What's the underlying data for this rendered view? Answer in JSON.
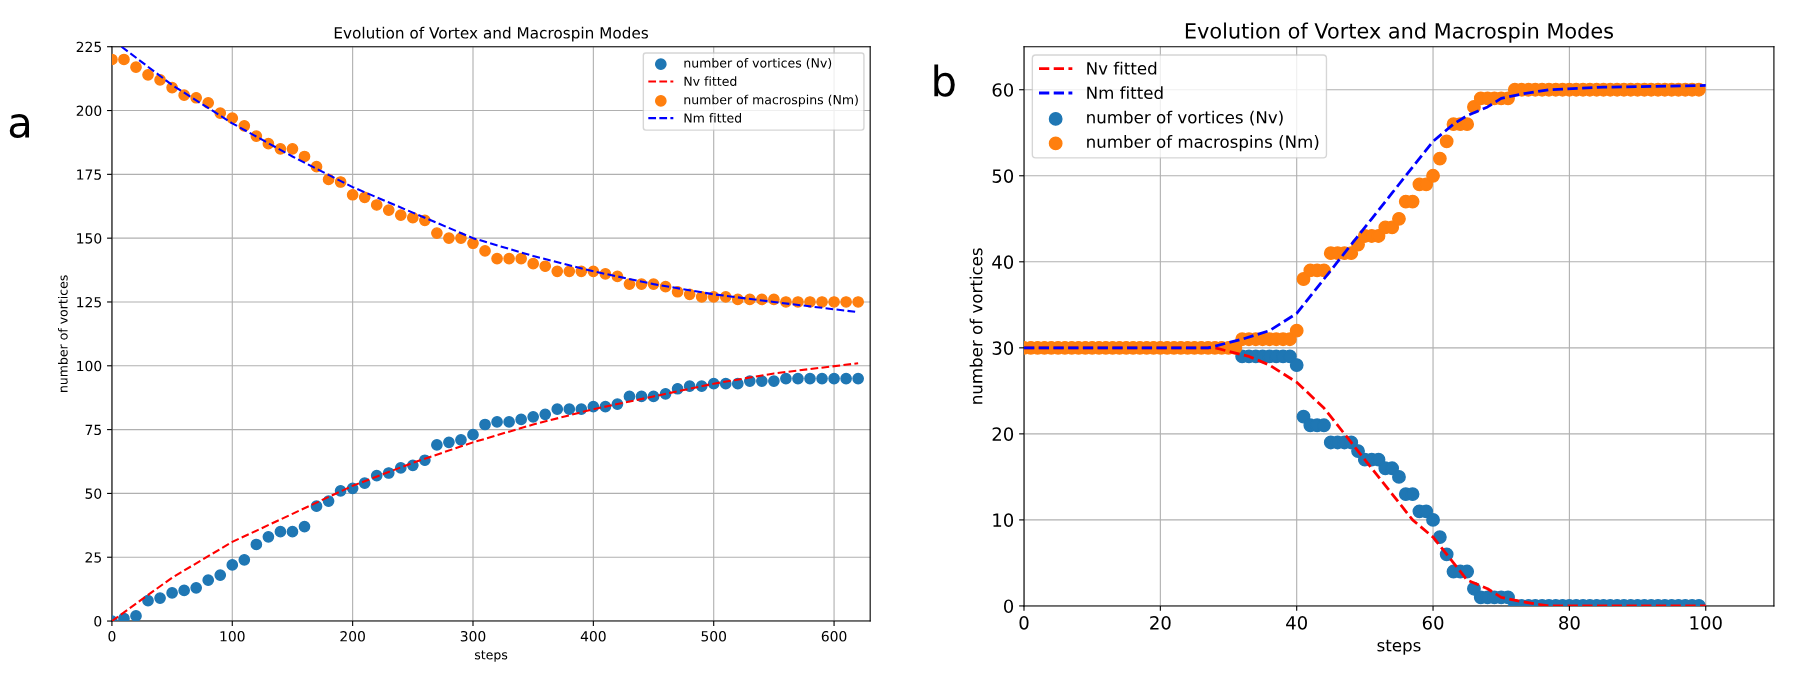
{
  "chart_data": [
    {
      "type": "scatter",
      "title": "Evolution of Vortex and Macrospin Modes",
      "xlabel": "steps",
      "ylabel": "number of vortices",
      "annotations": [
        "a"
      ],
      "xlim": [
        0,
        630
      ],
      "ylim": [
        0,
        225
      ],
      "xticks": [
        0,
        100,
        200,
        300,
        400,
        500,
        600
      ],
      "yticks": [
        0,
        25,
        50,
        75,
        100,
        125,
        150,
        175,
        200,
        225
      ],
      "grid": true,
      "legend": "top right",
      "series": [
        {
          "name": "number of vortices (Nv)",
          "marker": "circle",
          "color": "#1f77b4",
          "x": [
            0,
            10,
            20,
            30,
            40,
            50,
            60,
            70,
            80,
            90,
            100,
            110,
            120,
            130,
            140,
            150,
            160,
            170,
            180,
            190,
            200,
            210,
            220,
            230,
            240,
            250,
            260,
            270,
            280,
            290,
            300,
            310,
            320,
            330,
            340,
            350,
            360,
            370,
            380,
            390,
            400,
            410,
            420,
            430,
            440,
            450,
            460,
            470,
            480,
            490,
            500,
            510,
            520,
            530,
            540,
            550,
            560,
            570,
            580,
            590,
            600,
            610,
            620
          ],
          "values": [
            0,
            1,
            2,
            8,
            9,
            11,
            12,
            13,
            16,
            18,
            22,
            24,
            30,
            33,
            35,
            35,
            37,
            45,
            47,
            51,
            52,
            54,
            57,
            58,
            60,
            61,
            63,
            69,
            70,
            71,
            73,
            77,
            78,
            78,
            79,
            80,
            81,
            83,
            83,
            83,
            84,
            84,
            85,
            88,
            88,
            88,
            89,
            91,
            92,
            92,
            93,
            93,
            93,
            94,
            94,
            94,
            95,
            95,
            95,
            95,
            95,
            95,
            95
          ]
        },
        {
          "name": "Nv fitted",
          "type": "line",
          "line_style": "dashed",
          "color": "#ff0000",
          "x": [
            0,
            50,
            100,
            150,
            200,
            250,
            300,
            350,
            400,
            450,
            500,
            550,
            620
          ],
          "values": [
            0,
            17,
            31,
            42,
            53,
            62,
            70,
            77,
            83,
            88,
            93,
            97,
            101
          ]
        },
        {
          "name": "number of macrospins (Nm)",
          "marker": "circle",
          "color": "#ff7f0e",
          "x": [
            0,
            10,
            20,
            30,
            40,
            50,
            60,
            70,
            80,
            90,
            100,
            110,
            120,
            130,
            140,
            150,
            160,
            170,
            180,
            190,
            200,
            210,
            220,
            230,
            240,
            250,
            260,
            270,
            280,
            290,
            300,
            310,
            320,
            330,
            340,
            350,
            360,
            370,
            380,
            390,
            400,
            410,
            420,
            430,
            440,
            450,
            460,
            470,
            480,
            490,
            500,
            510,
            520,
            530,
            540,
            550,
            560,
            570,
            580,
            590,
            600,
            610,
            620
          ],
          "values": [
            220,
            220,
            217,
            214,
            212,
            209,
            206,
            205,
            203,
            199,
            197,
            194,
            190,
            187,
            185,
            185,
            182,
            178,
            173,
            172,
            167,
            166,
            163,
            161,
            159,
            158,
            157,
            152,
            150,
            150,
            148,
            145,
            142,
            142,
            142,
            140,
            139,
            137,
            137,
            137,
            137,
            136,
            135,
            132,
            132,
            132,
            131,
            129,
            128,
            127,
            127,
            127,
            126,
            126,
            126,
            126,
            125,
            125,
            125,
            125,
            125,
            125,
            125
          ]
        },
        {
          "name": "Nm fitted",
          "type": "line",
          "line_style": "dashed",
          "color": "#0000ff",
          "x": [
            8,
            50,
            100,
            150,
            200,
            250,
            300,
            350,
            400,
            450,
            500,
            550,
            620
          ],
          "values": [
            225,
            210,
            195,
            182,
            170,
            160,
            150,
            143,
            137,
            132,
            128,
            125,
            121
          ]
        }
      ]
    },
    {
      "type": "scatter",
      "title": "Evolution of Vortex and Macrospin Modes",
      "xlabel": "steps",
      "ylabel": "number of vortices",
      "annotations": [
        "b"
      ],
      "xlim": [
        0,
        110
      ],
      "ylim": [
        0,
        65
      ],
      "xticks": [
        0,
        20,
        40,
        60,
        80,
        100
      ],
      "yticks": [
        0,
        10,
        20,
        30,
        40,
        50,
        60
      ],
      "grid": true,
      "legend": "top left",
      "series": [
        {
          "name": "Nv fitted",
          "type": "line",
          "line_style": "dashed",
          "color": "#ff0000",
          "x": [
            0,
            20,
            28,
            33,
            36,
            40,
            44,
            48,
            51,
            54,
            57,
            60,
            63,
            65,
            68,
            70,
            73,
            77,
            85,
            100
          ],
          "values": [
            30,
            30,
            30,
            29,
            28,
            26,
            23,
            19,
            16,
            13,
            10,
            8,
            5,
            3,
            2,
            1,
            0.5,
            0,
            0,
            0
          ]
        },
        {
          "name": "Nm fitted",
          "type": "line",
          "line_style": "dashed",
          "color": "#0000ff",
          "x": [
            0,
            20,
            27,
            32,
            36,
            40,
            44,
            47,
            51,
            54,
            57,
            60,
            63,
            65,
            68,
            70,
            73,
            77,
            85,
            100
          ],
          "values": [
            30,
            30,
            30,
            31,
            32,
            34,
            38,
            41,
            45,
            48,
            51,
            54,
            56,
            57,
            58,
            59,
            59.5,
            60,
            60.3,
            60.5
          ]
        },
        {
          "name": "number of vortices (Nv)",
          "marker": "circle",
          "color": "#1f77b4",
          "x": [
            32,
            33,
            34,
            35,
            36,
            37,
            38,
            39,
            40,
            41,
            42,
            43,
            44,
            45,
            46,
            47,
            48,
            49,
            50,
            51,
            52,
            53,
            54,
            55,
            56,
            57,
            58,
            59,
            60,
            61,
            62,
            63,
            64,
            65,
            66,
            67,
            68,
            69,
            70,
            71,
            72,
            73,
            74,
            75,
            76,
            77,
            78,
            79,
            80,
            81,
            82,
            83,
            84,
            85,
            86,
            87,
            88,
            89,
            90,
            91,
            92,
            93,
            94,
            95,
            96,
            97,
            98,
            99
          ],
          "values": [
            29,
            29,
            29,
            29,
            29,
            29,
            29,
            29,
            28,
            22,
            21,
            21,
            21,
            19,
            19,
            19,
            19,
            18,
            17,
            17,
            17,
            16,
            16,
            15,
            13,
            13,
            11,
            11,
            10,
            8,
            6,
            4,
            4,
            4,
            2,
            1,
            1,
            1,
            1,
            1,
            0,
            0,
            0,
            0,
            0,
            0,
            0,
            0,
            0,
            0,
            0,
            0,
            0,
            0,
            0,
            0,
            0,
            0,
            0,
            0,
            0,
            0,
            0,
            0,
            0,
            0,
            0,
            0
          ]
        },
        {
          "name": "number of macrospins (Nm)",
          "marker": "circle",
          "color": "#ff7f0e",
          "x": [
            0,
            1,
            2,
            3,
            4,
            5,
            6,
            7,
            8,
            9,
            10,
            11,
            12,
            13,
            14,
            15,
            16,
            17,
            18,
            19,
            20,
            21,
            22,
            23,
            24,
            25,
            26,
            27,
            28,
            29,
            30,
            31,
            32,
            33,
            34,
            35,
            36,
            37,
            38,
            39,
            40,
            41,
            42,
            43,
            44,
            45,
            46,
            47,
            48,
            49,
            50,
            51,
            52,
            53,
            54,
            55,
            56,
            57,
            58,
            59,
            60,
            61,
            62,
            63,
            64,
            65,
            66,
            67,
            68,
            69,
            70,
            71,
            72,
            73,
            74,
            75,
            76,
            77,
            78,
            79,
            80,
            81,
            82,
            83,
            84,
            85,
            86,
            87,
            88,
            89,
            90,
            91,
            92,
            93,
            94,
            95,
            96,
            97,
            98,
            99
          ],
          "values": [
            30,
            30,
            30,
            30,
            30,
            30,
            30,
            30,
            30,
            30,
            30,
            30,
            30,
            30,
            30,
            30,
            30,
            30,
            30,
            30,
            30,
            30,
            30,
            30,
            30,
            30,
            30,
            30,
            30,
            30,
            30,
            30,
            31,
            31,
            31,
            31,
            31,
            31,
            31,
            31,
            32,
            38,
            39,
            39,
            39,
            41,
            41,
            41,
            41,
            42,
            43,
            43,
            43,
            44,
            44,
            45,
            47,
            47,
            49,
            49,
            50,
            52,
            54,
            56,
            56,
            56,
            58,
            59,
            59,
            59,
            59,
            59,
            60,
            60,
            60,
            60,
            60,
            60,
            60,
            60,
            60,
            60,
            60,
            60,
            60,
            60,
            60,
            60,
            60,
            60,
            60,
            60,
            60,
            60,
            60,
            60,
            60,
            60,
            60,
            60
          ]
        }
      ]
    }
  ]
}
